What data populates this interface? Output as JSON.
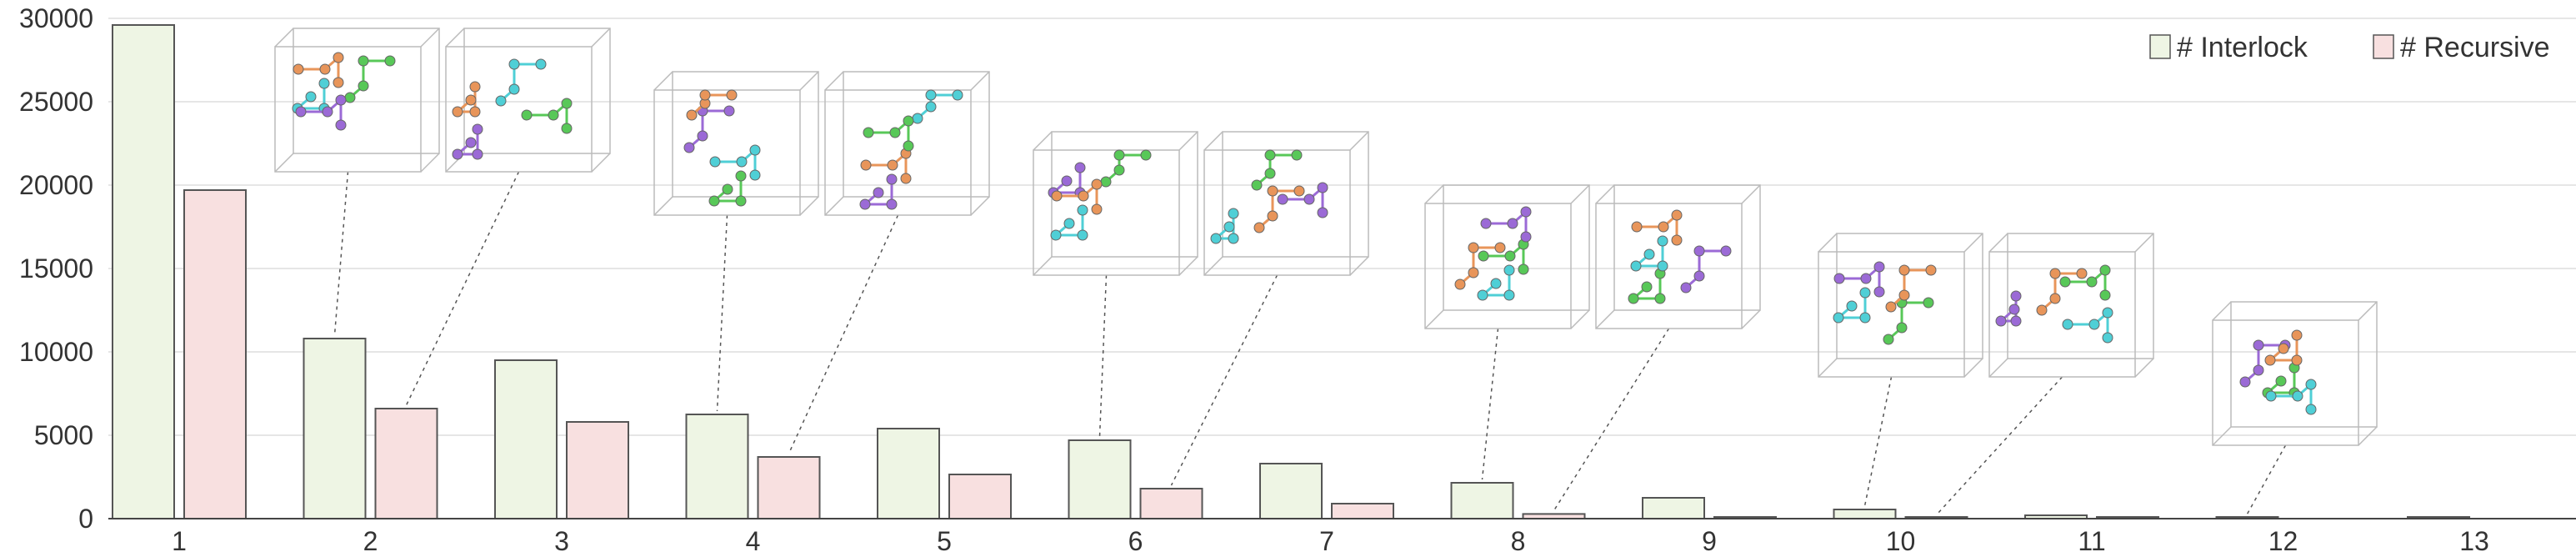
{
  "chart_data": {
    "type": "bar",
    "categories": [
      "1",
      "2",
      "3",
      "4",
      "5",
      "6",
      "7",
      "8",
      "9",
      "10",
      "11",
      "12",
      "13"
    ],
    "series": [
      {
        "name": "# Interlock",
        "color": "#eef5e4",
        "values": [
          29600,
          10800,
          9500,
          6250,
          5400,
          4700,
          3300,
          2150,
          1250,
          550,
          200,
          80,
          50
        ]
      },
      {
        "name": "# Recursive",
        "color": "#f8e0e0",
        "values": [
          19700,
          6600,
          5800,
          3700,
          2650,
          1800,
          900,
          280,
          50,
          20,
          10,
          0,
          0
        ]
      }
    ],
    "title": "",
    "xlabel": "",
    "ylabel": "",
    "ylim": [
      0,
      30000
    ],
    "yticks": [
      0,
      5000,
      10000,
      15000,
      20000,
      25000,
      30000
    ],
    "grid": true,
    "legend_position": "top-right",
    "insets": [
      {
        "category": "2",
        "series": "# Interlock",
        "colors": [
          "#e8955a",
          "#4fcfd6",
          "#58c858",
          "#9b6ad6"
        ]
      },
      {
        "category": "2",
        "series": "# Recursive",
        "colors": [
          "#e8955a",
          "#4fcfd6",
          "#58c858",
          "#9b6ad6"
        ]
      },
      {
        "category": "4",
        "series": "# Interlock",
        "colors": [
          "#9b6ad6",
          "#4fcfd6",
          "#58c858",
          "#e8955a"
        ]
      },
      {
        "category": "4",
        "series": "# Recursive",
        "colors": [
          "#e8955a",
          "#9b6ad6",
          "#4fcfd6",
          "#58c858"
        ]
      },
      {
        "category": "6",
        "series": "# Interlock",
        "colors": [
          "#9b6ad6",
          "#58c858",
          "#e8955a",
          "#4fcfd6"
        ]
      },
      {
        "category": "6",
        "series": "# Recursive",
        "colors": [
          "#58c858",
          "#9b6ad6",
          "#4fcfd6",
          "#e8955a"
        ]
      },
      {
        "category": "8",
        "series": "# Interlock",
        "colors": [
          "#58c858",
          "#4fcfd6",
          "#e8955a",
          "#9b6ad6"
        ]
      },
      {
        "category": "8",
        "series": "# Recursive",
        "colors": [
          "#58c858",
          "#9b6ad6",
          "#e8955a",
          "#4fcfd6"
        ]
      },
      {
        "category": "10",
        "series": "# Interlock",
        "colors": [
          "#58c858",
          "#9b6ad6",
          "#4fcfd6",
          "#e8955a"
        ]
      },
      {
        "category": "10",
        "series": "# Recursive",
        "colors": [
          "#58c858",
          "#9b6ad6",
          "#e8955a",
          "#4fcfd6"
        ]
      },
      {
        "category": "12",
        "series": "# Interlock",
        "colors": [
          "#58c858",
          "#9b6ad6",
          "#4fcfd6",
          "#e8955a"
        ]
      }
    ]
  }
}
